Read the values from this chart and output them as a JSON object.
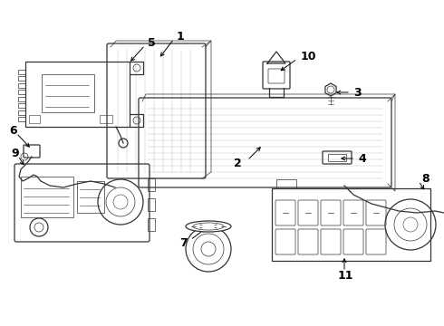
{
  "background_color": "#ffffff",
  "line_color": "#333333",
  "text_color": "#000000",
  "figsize": [
    4.9,
    3.6
  ],
  "dpi": 100,
  "label_fontsize": 8
}
